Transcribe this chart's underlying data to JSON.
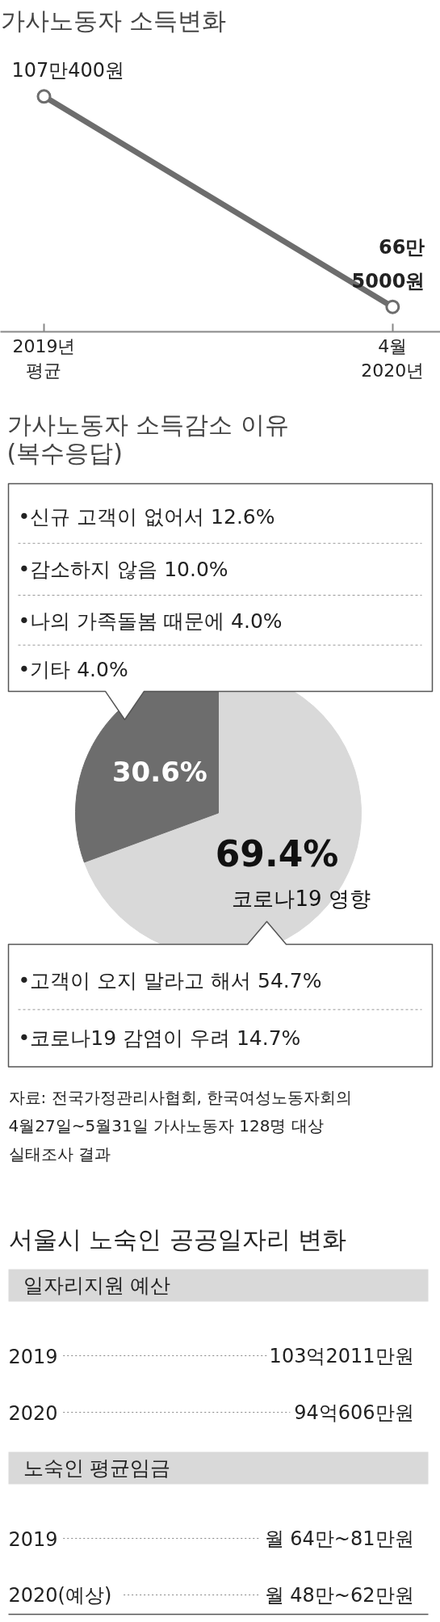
{
  "chart_data": [
    {
      "type": "line",
      "title": "가사노동자 소득변화",
      "categories": [
        "2019년\n평균",
        "4월\n2020년"
      ],
      "marker": "circle",
      "grid": false,
      "series": [
        {
          "color": "#6d6d6d",
          "values": [
            107.04,
            66.5
          ],
          "value_labels": [
            "107만400원",
            "66만\n5000원"
          ]
        }
      ]
    },
    {
      "type": "pie",
      "title": "가사노동자 소득감소 이유\n(복수응답)",
      "categories": [
        "코로나19 영향",
        null
      ],
      "values": [
        69.4,
        30.6
      ],
      "colors": [
        "#d9d9d9",
        "#6d6d6d"
      ],
      "value_labels": [
        "69.4%",
        "30.6%"
      ],
      "annotations": [
        "•신규 고객이 없어서 12.6%",
        "•감소하지 않음 10.0%",
        "•나의 가족돌봄 때문에 4.0%",
        "•기타 4.0%",
        "•고객이 오지 말라고 해서 54.7%",
        "•코로나19 감염이 우려 14.7%",
        "자료: 전국가정관리사협회, 한국여성노동자회의\n4월27일~5월31일 가사노동자 128명 대상\n실태조사 결과"
      ]
    },
    {
      "type": "other",
      "title": "서울시 노숙인 공공일자리 변화",
      "annotations": [
        "일자리지원 예산",
        "2019",
        "103억2011만원",
        "2020",
        "94억606만원",
        "노숙인 평균임금",
        "2019",
        "월 64만~81만원",
        "2020(예상)",
        "월 48만~62만원"
      ]
    }
  ]
}
